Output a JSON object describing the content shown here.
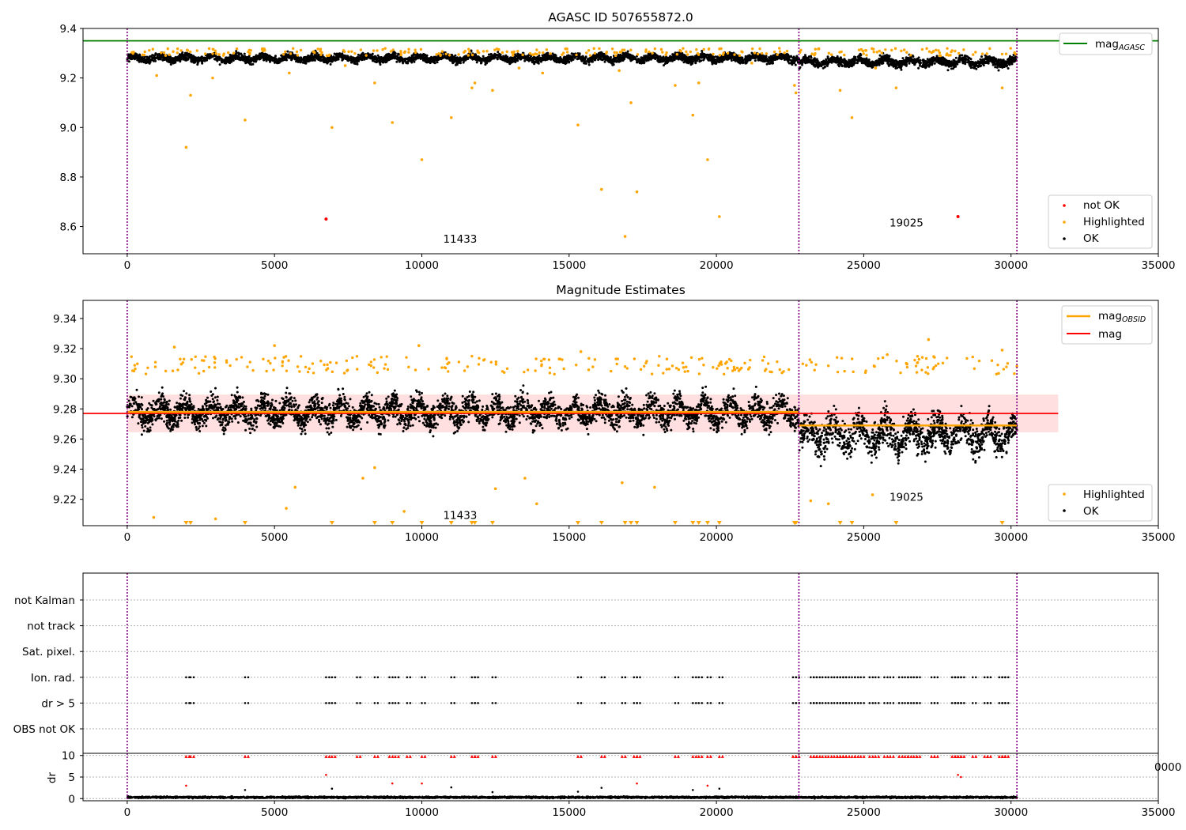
{
  "chart_data": [
    {
      "type": "scatter",
      "title": "AGASC ID 507655872.0",
      "xlim": [
        -1500,
        35000
      ],
      "ylim": [
        8.49,
        9.4
      ],
      "xticks": [
        0,
        5000,
        10000,
        15000,
        20000,
        25000,
        30000,
        35000
      ],
      "yticks": [
        8.6,
        8.8,
        9.0,
        9.2,
        9.4
      ],
      "obs_boundaries": [
        0,
        22800,
        30200
      ],
      "obsid_labels": [
        {
          "text": "11433",
          "x": 11300,
          "y": 8.535
        },
        {
          "text": "19025",
          "x": 26450,
          "y": 8.6
        }
      ],
      "reference_lines": [
        {
          "name": "mag_AGASC",
          "y": 9.35,
          "color": "#008000",
          "x_range": [
            -1500,
            35000
          ]
        }
      ],
      "series": [
        {
          "name": "OK",
          "color": "#000000",
          "description_bands": [
            {
              "x_range": [
                0,
                22800
              ],
              "center": 9.28,
              "spread": 0.025
            },
            {
              "x_range": [
                22800,
                30200
              ],
              "center": 9.265,
              "spread": 0.03
            }
          ]
        },
        {
          "name": "Highlighted",
          "color": "#ffa500",
          "points": [
            [
              2000,
              8.92
            ],
            [
              2150,
              9.13
            ],
            [
              2900,
              9.2
            ],
            [
              4000,
              9.03
            ],
            [
              6950,
              9.0
            ],
            [
              8400,
              9.18
            ],
            [
              9000,
              9.02
            ],
            [
              10000,
              8.87
            ],
            [
              11000,
              9.04
            ],
            [
              11700,
              9.16
            ],
            [
              11800,
              9.18
            ],
            [
              12400,
              9.15
            ],
            [
              15300,
              9.01
            ],
            [
              16100,
              8.75
            ],
            [
              16900,
              8.56
            ],
            [
              17100,
              9.1
            ],
            [
              17300,
              8.74
            ],
            [
              18600,
              9.17
            ],
            [
              19200,
              9.05
            ],
            [
              19400,
              9.18
            ],
            [
              19700,
              8.87
            ],
            [
              20100,
              8.64
            ],
            [
              22650,
              9.17
            ],
            [
              22700,
              9.14
            ],
            [
              24200,
              9.15
            ],
            [
              24600,
              9.04
            ],
            [
              26100,
              9.16
            ],
            [
              29700,
              9.16
            ],
            [
              1000,
              9.21
            ],
            [
              5500,
              9.22
            ],
            [
              7400,
              9.25
            ],
            [
              13300,
              9.24
            ],
            [
              14100,
              9.22
            ],
            [
              16700,
              9.23
            ],
            [
              21200,
              9.26
            ],
            [
              25400,
              9.24
            ],
            [
              27600,
              9.29
            ]
          ]
        },
        {
          "name": "not OK",
          "color": "#ff0000",
          "points": [
            [
              6750,
              8.63
            ],
            [
              28200,
              8.64
            ]
          ]
        }
      ],
      "legend_top": [
        "mag_AGASC"
      ],
      "legend_bottom": [
        "not OK",
        "Highlighted",
        "OK"
      ]
    },
    {
      "type": "scatter",
      "title": "Magnitude Estimates",
      "xlim": [
        -1500,
        35000
      ],
      "ylim": [
        9.2025,
        9.352
      ],
      "xticks": [
        0,
        5000,
        10000,
        15000,
        20000,
        25000,
        30000,
        35000
      ],
      "yticks": [
        9.22,
        9.24,
        9.26,
        9.28,
        9.3,
        9.32,
        9.34
      ],
      "obs_boundaries": [
        0,
        22800,
        30200
      ],
      "obsid_labels": [
        {
          "text": "11433",
          "x": 11300,
          "y": 9.207
        },
        {
          "text": "19025",
          "x": 26450,
          "y": 9.219
        }
      ],
      "band": {
        "x_range": [
          0,
          31600
        ],
        "y_range": [
          9.2645,
          9.2895
        ],
        "color": "#ffd7d7"
      },
      "reference_lines": [
        {
          "name": "mag",
          "y": 9.277,
          "color": "#ff0000",
          "x_range": [
            -1500,
            31600
          ]
        },
        {
          "name": "mag_OBSID",
          "segments": [
            {
              "x_range": [
                0,
                22800
              ],
              "y": 9.278
            },
            {
              "x_range": [
                22800,
                30200
              ],
              "y": 9.269
            }
          ],
          "color": "#ffa500"
        }
      ],
      "series": [
        {
          "name": "OK",
          "color": "#000000",
          "description_bands": [
            {
              "x_range": [
                0,
                22800
              ],
              "center": 9.278,
              "spread": 0.015
            },
            {
              "x_range": [
                22800,
                30200
              ],
              "center": 9.263,
              "spread": 0.018
            }
          ]
        },
        {
          "name": "Highlighted",
          "color": "#ffa500",
          "points": [
            [
              1600,
              9.321
            ],
            [
              5000,
              9.322
            ],
            [
              9900,
              9.322
            ],
            [
              15400,
              9.318
            ],
            [
              27200,
              9.326
            ],
            [
              29700,
              9.319
            ],
            [
              25800,
              9.316
            ],
            [
              900,
              9.208
            ],
            [
              3000,
              9.207
            ],
            [
              5400,
              9.214
            ],
            [
              5700,
              9.228
            ],
            [
              8000,
              9.234
            ],
            [
              8400,
              9.241
            ],
            [
              9400,
              9.212
            ],
            [
              12500,
              9.227
            ],
            [
              13500,
              9.234
            ],
            [
              13900,
              9.217
            ],
            [
              16800,
              9.231
            ],
            [
              17900,
              9.228
            ],
            [
              23200,
              9.219
            ],
            [
              23800,
              9.217
            ],
            [
              25300,
              9.223
            ]
          ]
        },
        {
          "name": "Highlighted (off-scale, below)",
          "color": "#ffa500",
          "marker": "triangle-down",
          "x": [
            2000,
            2150,
            4000,
            6950,
            8400,
            9000,
            10000,
            11000,
            11700,
            11800,
            12400,
            15300,
            16100,
            16900,
            17100,
            17300,
            18600,
            19200,
            19400,
            19700,
            20100,
            22650,
            22700,
            24200,
            24600,
            26100,
            29700
          ]
        }
      ],
      "legend": [
        "mag_OBSID",
        "mag",
        "Highlighted",
        "OK"
      ]
    },
    {
      "type": "scatter",
      "title": "",
      "xlim": [
        -1500,
        35000
      ],
      "categories": [
        "not Kalman",
        "not track",
        "Sat. pixel.",
        "Ion. rad.",
        "dr > 5",
        "OBS not OK"
      ],
      "obs_boundaries": [
        0,
        22800,
        30200
      ],
      "flag_times": [
        2000,
        2150,
        4000,
        6750,
        6950,
        7800,
        8400,
        8900,
        9100,
        9500,
        10000,
        11000,
        11700,
        11800,
        12400,
        15300,
        16100,
        16800,
        17200,
        17300,
        18600,
        19200,
        19400,
        19700,
        20100,
        22600,
        22700,
        23200,
        23300,
        23400,
        23600,
        23800,
        24000,
        24100,
        24200,
        24300,
        24400,
        24600,
        24700,
        24900,
        25200,
        25400,
        25700,
        25900,
        26200,
        26400,
        26500,
        26700,
        26800,
        27300,
        27400,
        28000,
        28100,
        28200,
        28300,
        28700,
        29100,
        29200,
        29600,
        29700,
        29800
      ],
      "flag_rows": [
        "Ion. rad.",
        "dr > 5"
      ]
    },
    {
      "type": "scatter",
      "title": "",
      "ylabel": "dr",
      "xlim": [
        -1500,
        35000
      ],
      "ylim": [
        -0.5,
        10.5
      ],
      "xticks": [
        0,
        5000,
        10000,
        15000,
        20000,
        25000,
        30000,
        35000
      ],
      "yticks": [
        0,
        5,
        10
      ],
      "obs_boundaries": [
        0,
        22800,
        30200
      ],
      "clipped_marker_y": 9.8,
      "series": [
        {
          "name": "dr",
          "color": "#000000",
          "description_bands": [
            {
              "x_range": [
                0,
                30200
              ],
              "center": 0.3,
              "spread": 0.3
            }
          ]
        },
        {
          "name": "dr (flagged)",
          "color": "#ff0000",
          "points": [
            [
              2000,
              3.0
            ],
            [
              6750,
              5.5
            ],
            [
              9000,
              3.5
            ],
            [
              10000,
              3.5
            ],
            [
              17300,
              3.5
            ],
            [
              19700,
              3.0
            ],
            [
              28200,
              5.5
            ],
            [
              28300,
              5.0
            ]
          ]
        },
        {
          "name": "dr (black outliers)",
          "color": "#000000",
          "points": [
            [
              4000,
              2.0
            ],
            [
              6950,
              2.3
            ],
            [
              11000,
              2.6
            ],
            [
              16100,
              2.5
            ],
            [
              19200,
              2.0
            ],
            [
              20100,
              2.3
            ],
            [
              12400,
              1.5
            ],
            [
              15300,
              1.6
            ]
          ]
        }
      ],
      "stray_tick_label": "0000"
    }
  ]
}
